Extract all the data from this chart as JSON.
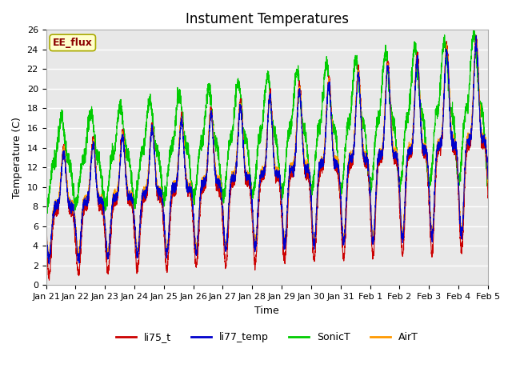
{
  "title": "Instument Temperatures",
  "xlabel": "Time",
  "ylabel": "Temperature (C)",
  "ylim": [
    0,
    26
  ],
  "yticks": [
    0,
    2,
    4,
    6,
    8,
    10,
    12,
    14,
    16,
    18,
    20,
    22,
    24,
    26
  ],
  "xtick_labels": [
    "Jan 21",
    "Jan 22",
    "Jan 23",
    "Jan 24",
    "Jan 25",
    "Jan 26",
    "Jan 27",
    "Jan 28",
    "Jan 29",
    "Jan 30",
    "Jan 31",
    "Feb 1",
    "Feb 2",
    "Feb 3",
    "Feb 4",
    "Feb 5"
  ],
  "colors": {
    "li75_t": "#cc0000",
    "li77_temp": "#0000cc",
    "SonicT": "#00cc00",
    "AirT": "#ff9900"
  },
  "annotation_text": "EE_flux",
  "annotation_color": "#8b0000",
  "annotation_bg": "#ffffcc",
  "annotation_border": "#aaaa00",
  "background_color": "#ffffff",
  "plot_bg_color": "#e8e8e8",
  "grid_color": "#ffffff",
  "n_days": 15,
  "ppd": 288,
  "title_fontsize": 12,
  "axis_label_fontsize": 9,
  "tick_fontsize": 8,
  "legend_fontsize": 9
}
